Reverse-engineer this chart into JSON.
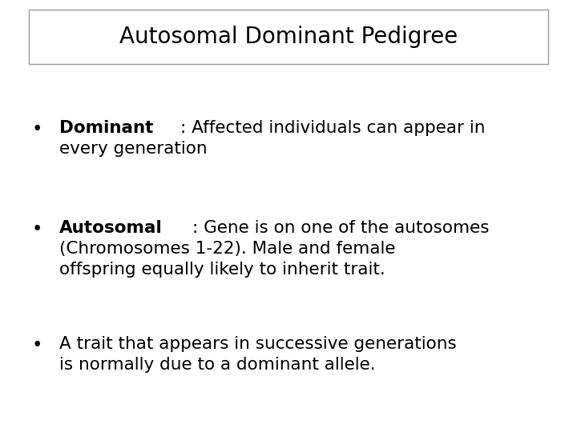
{
  "title": "Autosomal Dominant Pedigree",
  "title_fontsize": 20,
  "background_color": "#ffffff",
  "box_edge_color": "#999999",
  "text_color": "#000000",
  "bullet_symbol": "•",
  "bullet_fontsize": 15.5,
  "fig_width": 7.2,
  "fig_height": 5.4,
  "dpi": 100,
  "bullet_items": [
    {
      "bold": "Dominant",
      "rest_line1": ": Affected individuals can appear in",
      "line2": "every generation",
      "line3": ""
    },
    {
      "bold": "Autosomal",
      "rest_line1": ": Gene is on one of the autosomes",
      "line2": "(Chromosomes 1-22). Male and female",
      "line3": "offspring equally likely to inherit trait."
    },
    {
      "bold": "",
      "rest_line1": "A trait that appears in successive generations",
      "line2": "is normally due to a dominant allele.",
      "line3": ""
    }
  ]
}
